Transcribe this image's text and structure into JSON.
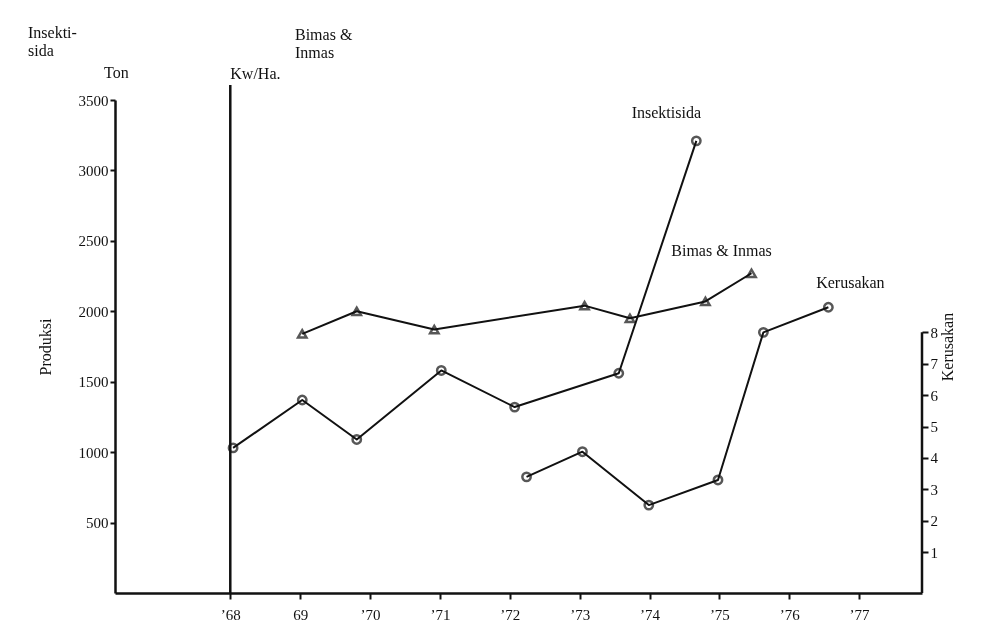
{
  "chart_data": {
    "type": "line",
    "ylabel": "Produksi",
    "y2label": "Kerusakan",
    "annotations": [
      "Insekti-\nsida",
      "Ton",
      "Bimas &\nInmas"
    ],
    "xlim": [
      1966.35,
      1977.9
    ],
    "xticks": [
      {
        "value": 1968,
        "label": "’68"
      },
      {
        "value": 1969,
        "label": "69"
      },
      {
        "value": 1970,
        "label": "’70"
      },
      {
        "value": 1971,
        "label": "’71"
      },
      {
        "value": 1972,
        "label": "’72"
      },
      {
        "value": 1973,
        "label": "’73"
      },
      {
        "value": 1974,
        "label": "’74"
      },
      {
        "value": 1975,
        "label": "’75"
      },
      {
        "value": 1976,
        "label": "’76"
      },
      {
        "value": 1977,
        "label": "’77"
      }
    ],
    "ylim": [
      0,
      3500
    ],
    "yticks": [
      500,
      1000,
      1500,
      2000,
      2500,
      3000,
      3500
    ],
    "y2lim": [
      -0.3,
      15.4
    ],
    "y2ticks": [
      1,
      2,
      3,
      4,
      5,
      6,
      7,
      8
    ],
    "ref_lines": [
      {
        "axis": "x",
        "value": 1968,
        "label": "Kw/Ha."
      }
    ],
    "series": [
      {
        "name": "Insektisida",
        "color": "#111111",
        "marker": "circle",
        "x": [
          1968.04,
          1969.03,
          1969.81,
          1971.02,
          1972.07,
          1973.56,
          1974.67
        ],
        "values": [
          1030,
          1370,
          1090,
          1580,
          1320,
          1560,
          3210
        ]
      },
      {
        "name": "Bimas & Inmas",
        "color": "#111111",
        "marker": "triangle",
        "x": [
          1969.03,
          1969.81,
          1970.92,
          1973.07,
          1973.72,
          1974.8,
          1975.46
        ],
        "values": [
          1840,
          2000,
          1870,
          2040,
          1950,
          2070,
          2270
        ]
      },
      {
        "name": "Kerusakan",
        "color": "#111111",
        "marker": "circle",
        "axis": "y2",
        "x": [
          1972.24,
          1973.04,
          1973.99,
          1974.98,
          1975.63,
          1976.56
        ],
        "values": [
          3.4,
          4.2,
          2.5,
          3.3,
          8.0,
          8.8
        ]
      }
    ]
  }
}
